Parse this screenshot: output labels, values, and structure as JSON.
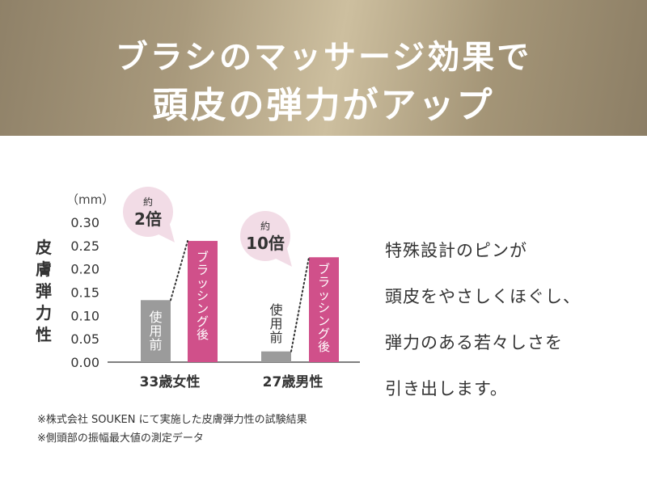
{
  "banner": {
    "line1": "ブラシのマッサージ効果で",
    "line2": "頭皮の弾力がアップ"
  },
  "chart_data": {
    "type": "bar",
    "ylabel": "皮膚弾力性",
    "unit": "（mm）",
    "ylim": [
      0,
      0.3
    ],
    "yticks": [
      "0.30",
      "0.25",
      "0.20",
      "0.15",
      "0.10",
      "0.05",
      "0.00"
    ],
    "categories": [
      "33歳女性",
      "27歳男性"
    ],
    "series": [
      {
        "name": "使用前",
        "color": "#9b9b9b",
        "values": [
          0.133,
          0.023
        ]
      },
      {
        "name": "ブラッシング後",
        "color": "#d0508a",
        "values": [
          0.26,
          0.225
        ]
      }
    ],
    "callouts": [
      {
        "top": "約",
        "main": "2倍"
      },
      {
        "top": "約",
        "main": "10倍"
      }
    ]
  },
  "description": {
    "lines": [
      "特殊設計のピンが",
      "頭皮をやさしくほぐし、",
      "弾力のある若々しさを",
      "引き出します。"
    ]
  },
  "footnotes": [
    "※株式会社 SOUKEN にて実施した皮膚弾力性の試験結果",
    "※側頭部の振幅最大値の測定データ"
  ]
}
